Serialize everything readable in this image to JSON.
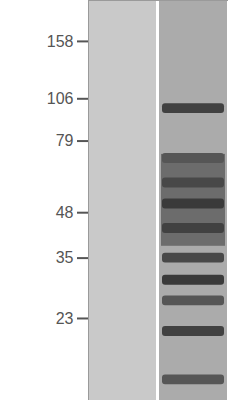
{
  "chart_data": {
    "type": "western_blot",
    "log": "y",
    "ylim": [
      13,
      210
    ],
    "yticks": [
      158,
      106,
      79,
      48,
      35,
      23
    ],
    "tick_labels": "y",
    "color": "#1e1e1e",
    "lanes": [
      {
        "color": "#c9c9c9",
        "bands": []
      },
      {
        "color": "#ababab",
        "smear": {
          "from": 38,
          "to": 72,
          "intensity": 0.45
        },
        "bands": [
          {
            "kda": 99,
            "intensity": 0.75
          },
          {
            "kda": 70,
            "intensity": 0.6
          },
          {
            "kda": 59,
            "intensity": 0.7
          },
          {
            "kda": 51,
            "intensity": 0.8
          },
          {
            "kda": 43,
            "intensity": 0.75
          },
          {
            "kda": 35,
            "intensity": 0.7
          },
          {
            "kda": 30,
            "intensity": 0.8
          },
          {
            "kda": 26,
            "intensity": 0.6
          },
          {
            "kda": 21,
            "intensity": 0.75
          },
          {
            "kda": 15,
            "intensity": 0.6
          }
        ]
      }
    ]
  }
}
